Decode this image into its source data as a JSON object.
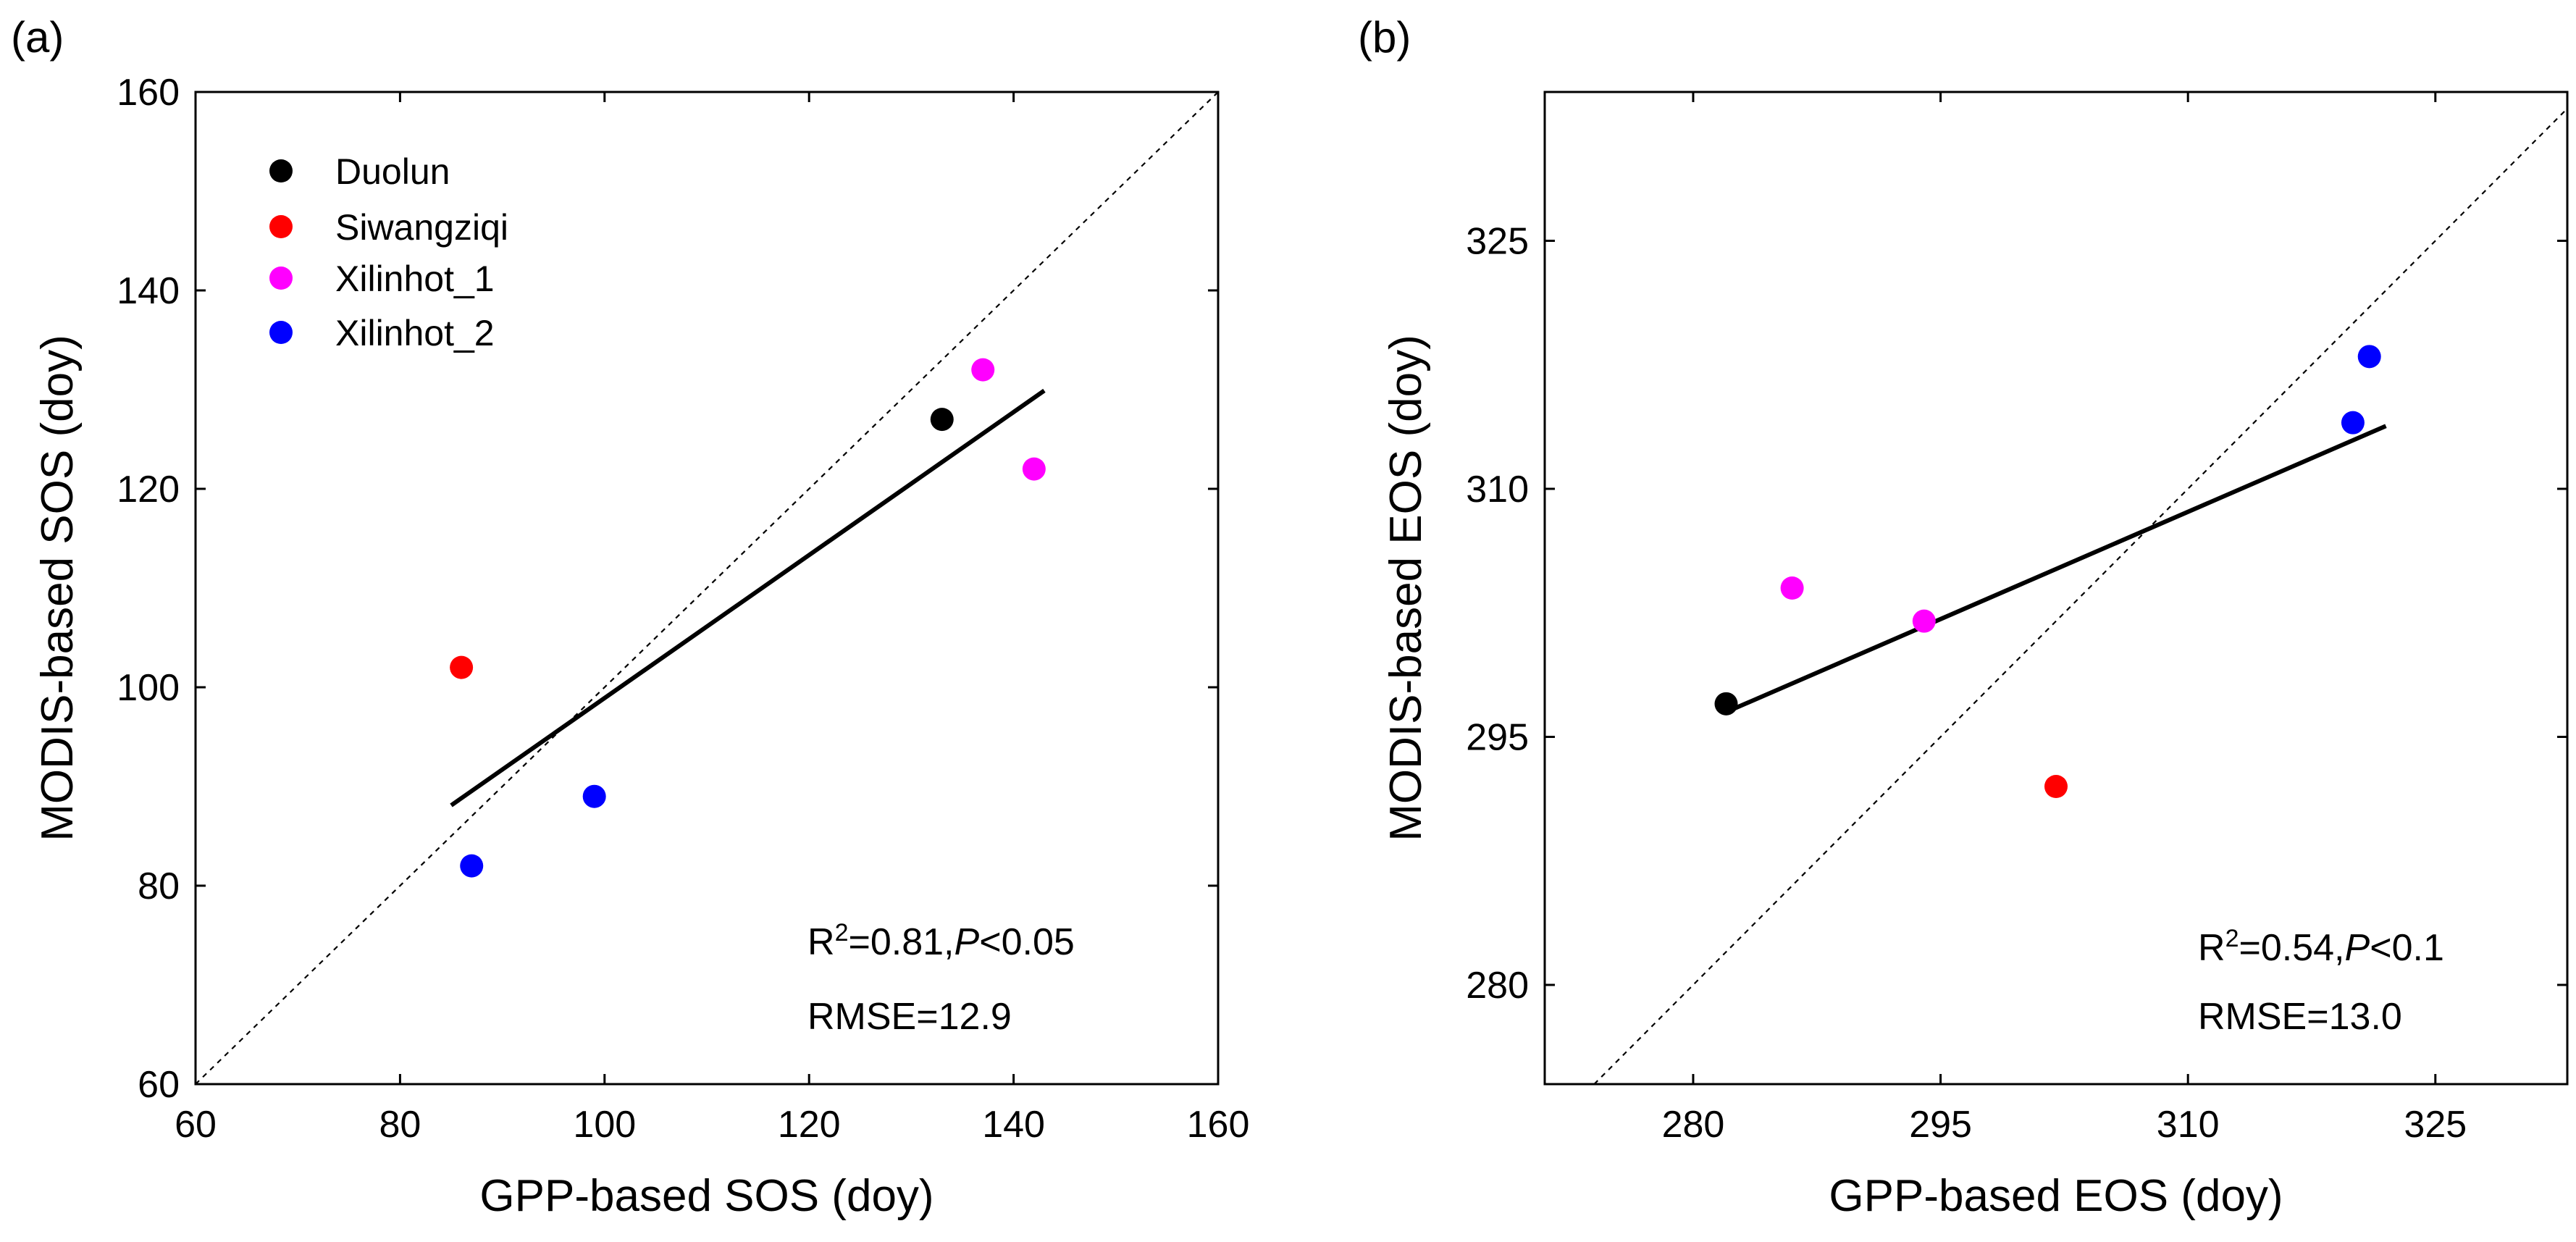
{
  "chart_data": [
    {
      "type": "scatter",
      "panel_label": "(a)",
      "xlabel": "GPP-based SOS (doy)",
      "ylabel": "MODIS-based SOS (doy)",
      "xlim": [
        60,
        160
      ],
      "ylim": [
        60,
        160
      ],
      "xticks": [
        60,
        80,
        100,
        120,
        140,
        160
      ],
      "yticks": [
        60,
        80,
        100,
        120,
        140,
        160
      ],
      "identity_line": true,
      "legend_position": "top-left",
      "series": [
        {
          "name": "Duolun",
          "color": "#000000",
          "points": [
            [
              133,
              127
            ]
          ]
        },
        {
          "name": "Siwangziqi",
          "color": "#ff0000",
          "points": [
            [
              86,
              102
            ]
          ]
        },
        {
          "name": "Xilinhot_1",
          "color": "#ff00ff",
          "points": [
            [
              137,
              132
            ],
            [
              142,
              122
            ]
          ]
        },
        {
          "name": "Xilinhot_2",
          "color": "#0000ff",
          "points": [
            [
              87,
              82
            ],
            [
              99,
              89
            ]
          ]
        }
      ],
      "fit_line": {
        "x": [
          85,
          143
        ],
        "y": [
          88.1,
          129.9
        ]
      },
      "stats": {
        "r2_base": "R",
        "r2_sup": "2",
        "r2_value": "=0.81,",
        "p_label": "P",
        "p_value": "<0.05",
        "rmse": "RMSE=12.9"
      }
    },
    {
      "type": "scatter",
      "panel_label": "(b)",
      "xlabel": "GPP-based EOS (doy)",
      "ylabel": "MODIS-based EOS (doy)",
      "xlim": [
        271,
        333
      ],
      "ylim": [
        274,
        334
      ],
      "xticks": [
        280,
        295,
        310,
        325
      ],
      "yticks": [
        280,
        295,
        310,
        325
      ],
      "identity_line": true,
      "series": [
        {
          "name": "Duolun",
          "color": "#000000",
          "points": [
            [
              282,
              297
            ]
          ]
        },
        {
          "name": "Siwangziqi",
          "color": "#ff0000",
          "points": [
            [
              302,
              292
            ]
          ]
        },
        {
          "name": "Xilinhot_1",
          "color": "#ff00ff",
          "points": [
            [
              286,
              304
            ],
            [
              294,
              302
            ]
          ]
        },
        {
          "name": "Xilinhot_2",
          "color": "#0000ff",
          "points": [
            [
              321,
              318
            ],
            [
              320,
              314
            ]
          ]
        }
      ],
      "fit_line": {
        "x": [
          282,
          322
        ],
        "y": [
          296.5,
          313.8
        ]
      },
      "stats": {
        "r2_base": "R",
        "r2_sup": "2",
        "r2_value": "=0.54,",
        "p_label": "P",
        "p_value": "<0.1",
        "rmse": "RMSE=13.0"
      }
    }
  ]
}
